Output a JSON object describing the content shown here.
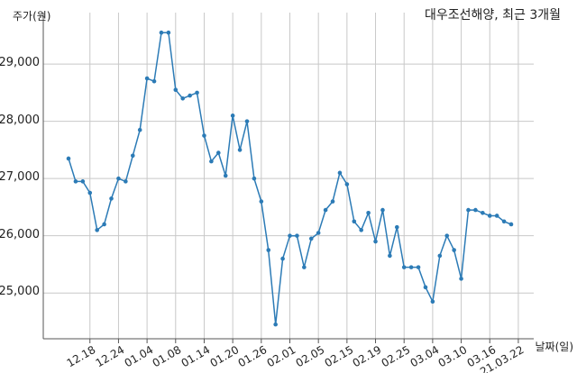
{
  "chart_data": {
    "type": "line",
    "title": "대우조선해양, 최근 3개월",
    "ylabel": "주가(원)",
    "xlabel": "날짜(일)",
    "ylim": [
      24200,
      29900
    ],
    "y_ticks": [
      25000,
      26000,
      27000,
      28000,
      29000
    ],
    "y_tick_labels": [
      "25,000",
      "26,000",
      "27,000",
      "28,000",
      "29,000"
    ],
    "grid": true,
    "color": "#2c7bb6",
    "x_tick_labels": [
      "12.18",
      "12.24",
      "01.04",
      "01.08",
      "01.14",
      "01.20",
      "01.26",
      "02.01",
      "02.05",
      "02.15",
      "02.19",
      "02.25",
      "03.04",
      "03.10",
      "03.16",
      "21.03.22"
    ],
    "x_tick_indices": [
      3,
      7,
      11,
      15,
      19,
      23,
      27,
      31,
      35,
      39,
      43,
      47,
      51,
      55,
      59,
      63
    ],
    "values": [
      27350,
      26950,
      26950,
      26750,
      26100,
      26200,
      26650,
      27000,
      26950,
      27400,
      27850,
      28750,
      28700,
      29550,
      29550,
      28550,
      28400,
      28450,
      28500,
      27750,
      27300,
      27450,
      27050,
      28100,
      27500,
      28000,
      27000,
      26600,
      25750,
      24450,
      25600,
      26000,
      26000,
      25450,
      25950,
      26050,
      26450,
      26600,
      27100,
      26900,
      26250,
      26100,
      26400,
      25900,
      26450,
      25650,
      26150,
      25450,
      25450,
      25450,
      25100,
      24850,
      25650,
      26000,
      25750,
      25250,
      26450,
      26450,
      26400,
      26350,
      26350,
      26250,
      26200
    ]
  }
}
